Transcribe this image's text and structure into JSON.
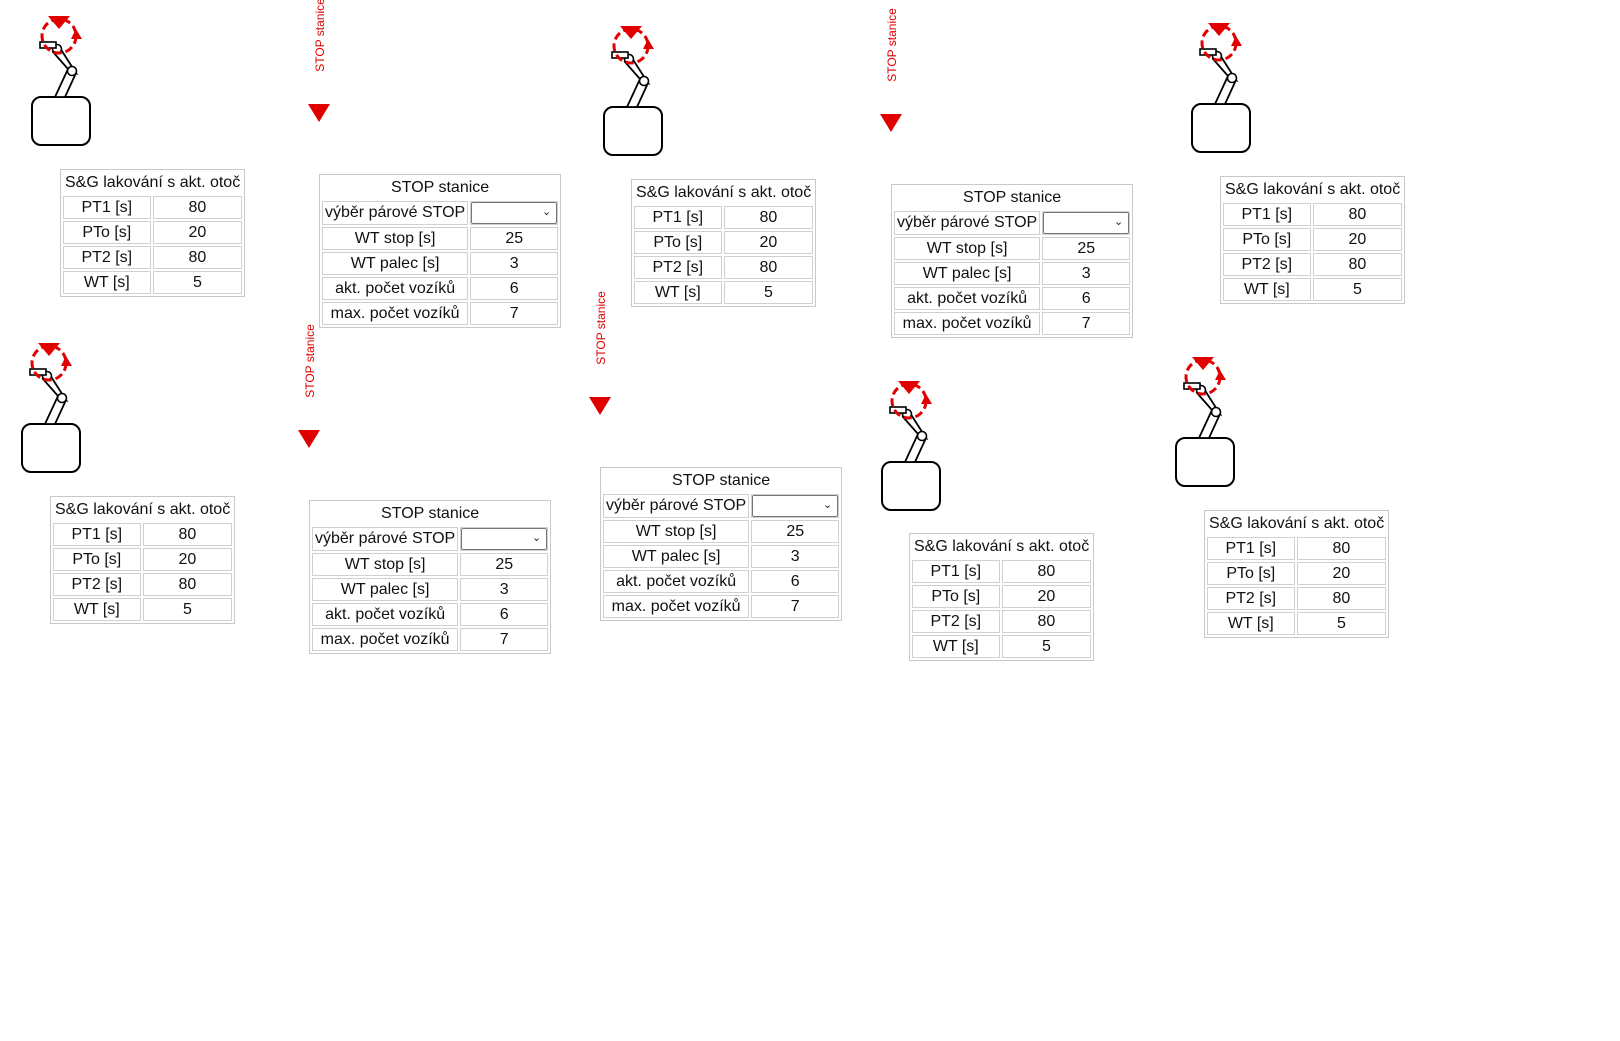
{
  "sg_widgets": [
    {
      "title": "S&G lakování s akt. otoč",
      "rows": [
        {
          "label": "PT1 [s]",
          "value": "80"
        },
        {
          "label": "PTo [s]",
          "value": "20"
        },
        {
          "label": "PT2 [s]",
          "value": "80"
        },
        {
          "label": "WT [s]",
          "value": "5"
        }
      ]
    },
    {
      "title": "S&G lakování s akt. otoč",
      "rows": [
        {
          "label": "PT1 [s]",
          "value": "80"
        },
        {
          "label": "PTo [s]",
          "value": "20"
        },
        {
          "label": "PT2 [s]",
          "value": "80"
        },
        {
          "label": "WT [s]",
          "value": "5"
        }
      ]
    },
    {
      "title": "S&G lakování s akt. otoč",
      "rows": [
        {
          "label": "PT1 [s]",
          "value": "80"
        },
        {
          "label": "PTo [s]",
          "value": "20"
        },
        {
          "label": "PT2 [s]",
          "value": "80"
        },
        {
          "label": "WT [s]",
          "value": "5"
        }
      ]
    },
    {
      "title": "S&G lakování s akt. otoč",
      "rows": [
        {
          "label": "PT1 [s]",
          "value": "80"
        },
        {
          "label": "PTo [s]",
          "value": "20"
        },
        {
          "label": "PT2 [s]",
          "value": "80"
        },
        {
          "label": "WT [s]",
          "value": "5"
        }
      ]
    },
    {
      "title": "S&G lakování s akt. otoč",
      "rows": [
        {
          "label": "PT1 [s]",
          "value": "80"
        },
        {
          "label": "PTo [s]",
          "value": "20"
        },
        {
          "label": "PT2 [s]",
          "value": "80"
        },
        {
          "label": "WT [s]",
          "value": "5"
        }
      ]
    },
    {
      "title": "S&G lakování s akt. otoč",
      "rows": [
        {
          "label": "PT1 [s]",
          "value": "80"
        },
        {
          "label": "PTo [s]",
          "value": "20"
        },
        {
          "label": "PT2 [s]",
          "value": "80"
        },
        {
          "label": "WT [s]",
          "value": "5"
        }
      ]
    }
  ],
  "stop_widgets": [
    {
      "marker_label": "STOP stanice",
      "title": "STOP stanice",
      "select_label": "výběr párové STOP",
      "select_value": "",
      "rows": [
        {
          "label": "WT stop [s]",
          "value": "25"
        },
        {
          "label": "WT palec [s]",
          "value": "3"
        },
        {
          "label": "akt. počet vozíků",
          "value": "6"
        },
        {
          "label": "max. počet vozíků",
          "value": "7"
        }
      ]
    },
    {
      "marker_label": "STOP stanice",
      "title": "STOP stanice",
      "select_label": "výběr párové STOP",
      "select_value": "",
      "rows": [
        {
          "label": "WT stop [s]",
          "value": "25"
        },
        {
          "label": "WT palec [s]",
          "value": "3"
        },
        {
          "label": "akt. počet vozíků",
          "value": "6"
        },
        {
          "label": "max. počet vozíků",
          "value": "7"
        }
      ]
    },
    {
      "marker_label": "STOP stanice",
      "title": "STOP stanice",
      "select_label": "výběr párové STOP",
      "select_value": "",
      "rows": [
        {
          "label": "WT stop [s]",
          "value": "25"
        },
        {
          "label": "WT palec [s]",
          "value": "3"
        },
        {
          "label": "akt. počet vozíků",
          "value": "6"
        },
        {
          "label": "max. počet vozíků",
          "value": "7"
        }
      ]
    },
    {
      "marker_label": "STOP stanice",
      "title": "STOP stanice",
      "select_label": "výběr párové STOP",
      "select_value": "",
      "rows": [
        {
          "label": "WT stop [s]",
          "value": "25"
        },
        {
          "label": "WT palec [s]",
          "value": "3"
        },
        {
          "label": "akt. počet vozíků",
          "value": "6"
        },
        {
          "label": "max. počet vozíků",
          "value": "7"
        }
      ]
    }
  ],
  "colors": {
    "accent": "#e00000",
    "border": "#c8c8c8",
    "text": "#111111"
  },
  "icons": {
    "robot": "robot-arm-icon",
    "stop_arrow": "stop-arrow-icon"
  }
}
